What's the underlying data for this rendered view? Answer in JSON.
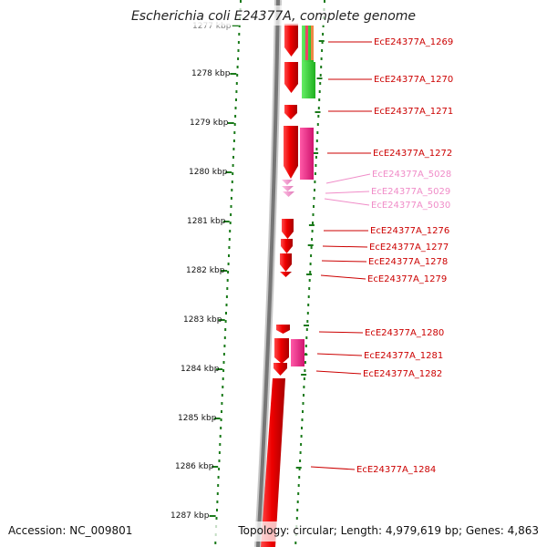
{
  "title": "Escherichia coli E24377A, complete genome",
  "footer": {
    "accession": "Accession: NC_009801",
    "summary": "Topology: circular; Length: 4,979,619 bp; Genes: 4,863"
  },
  "colors": {
    "gene_red": "#ee0000",
    "gene_pink": "#ee88cc",
    "label_red": "#cc0000",
    "label_pink": "#f08cc8",
    "scale_green": "#1a7a1a",
    "backbone_gray": "#7a7a7a",
    "feature_magenta": "#ee2288",
    "feature_green": "#33cc33",
    "feature_orange": "#ee8844"
  },
  "scale_labels": [
    "1277 kbp",
    "1278 kbp",
    "1279 kbp",
    "1280 kbp",
    "1281 kbp",
    "1282 kbp",
    "1283 kbp",
    "1284 kbp",
    "1285 kbp",
    "1286 kbp",
    "1287 kbp"
  ],
  "genes": [
    {
      "label": "EcE24377A_1269",
      "kind": "red"
    },
    {
      "label": "EcE24377A_1270",
      "kind": "red"
    },
    {
      "label": "EcE24377A_1271",
      "kind": "red"
    },
    {
      "label": "EcE24377A_1272",
      "kind": "red"
    },
    {
      "label": "EcE24377A_5028",
      "kind": "pink"
    },
    {
      "label": "EcE24377A_5029",
      "kind": "pink"
    },
    {
      "label": "EcE24377A_5030",
      "kind": "pink"
    },
    {
      "label": "EcE24377A_1276",
      "kind": "red"
    },
    {
      "label": "EcE24377A_1277",
      "kind": "red"
    },
    {
      "label": "EcE24377A_1278",
      "kind": "red"
    },
    {
      "label": "EcE24377A_1279",
      "kind": "red"
    },
    {
      "label": "EcE24377A_1280",
      "kind": "red"
    },
    {
      "label": "EcE24377A_1281",
      "kind": "red"
    },
    {
      "label": "EcE24377A_1282",
      "kind": "red"
    },
    {
      "label": "EcE24377A_1284",
      "kind": "red"
    }
  ]
}
